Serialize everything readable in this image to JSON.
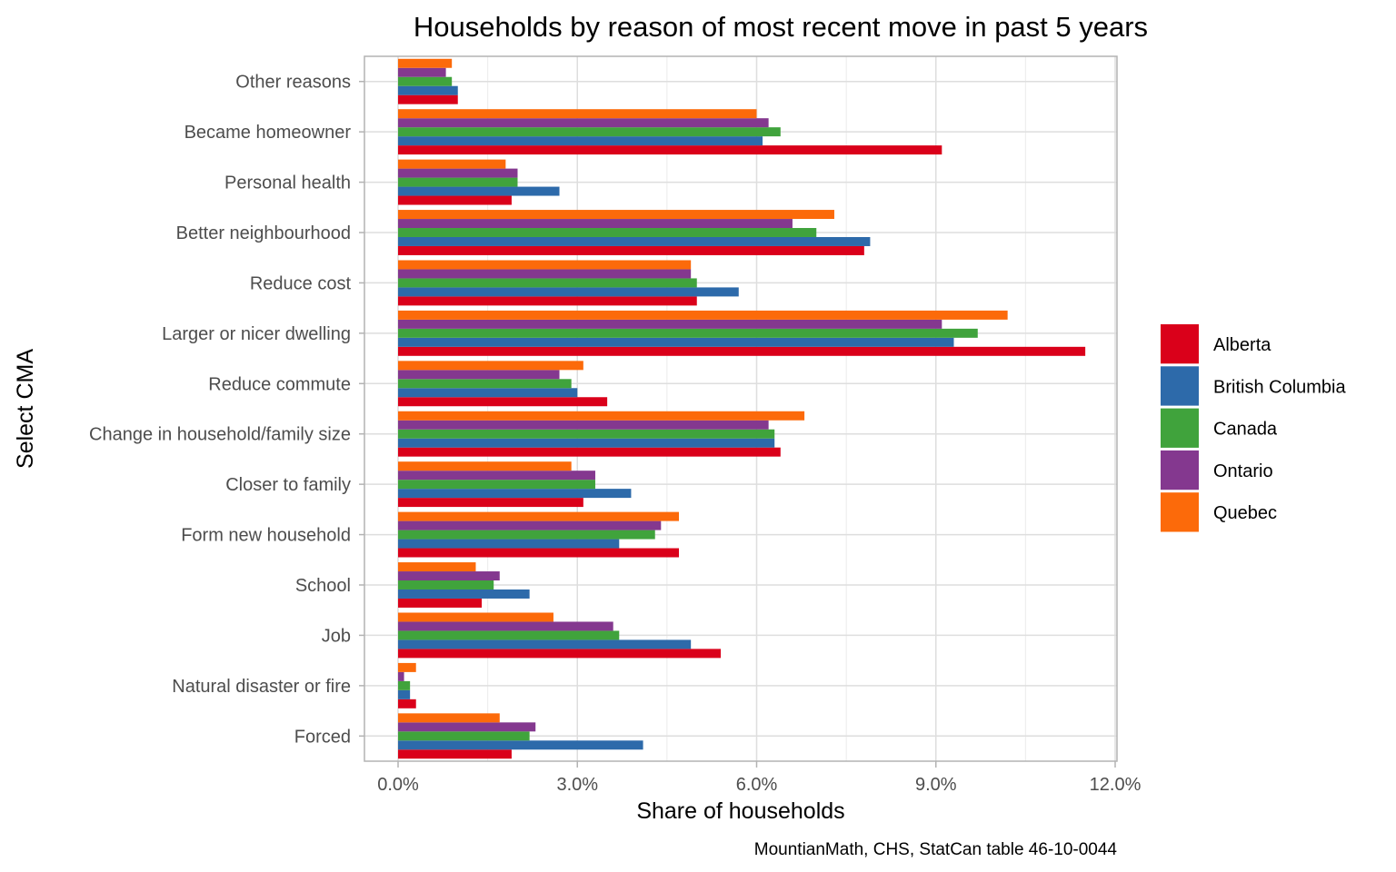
{
  "chart_data": {
    "type": "bar",
    "orientation": "horizontal",
    "title": "Households by reason of most recent move in past 5 years",
    "xlabel": "Share of households",
    "ylabel": "Select CMA",
    "caption": "MountianMath, CHS, StatCan table 46-10-0044",
    "xlim": [
      0,
      12
    ],
    "x_ticks": [
      0,
      3,
      6,
      9,
      12
    ],
    "x_tick_labels": [
      "0.0%",
      "3.0%",
      "6.0%",
      "9.0%",
      "12.0%"
    ],
    "grid": true,
    "legend_position": "right",
    "categories": [
      "Other reasons",
      "Became homeowner",
      "Personal health",
      "Better neighbourhood",
      "Reduce cost",
      "Larger or nicer dwelling",
      "Reduce commute",
      "Change in household/family size",
      "Closer to family",
      "Form new household",
      "School",
      "Job",
      "Natural disaster or fire",
      "Forced"
    ],
    "series": [
      {
        "name": "Alberta",
        "color": "#DA001A",
        "values": [
          1.0,
          9.1,
          1.9,
          7.8,
          5.0,
          11.5,
          3.5,
          6.4,
          3.1,
          4.7,
          1.4,
          5.4,
          0.3,
          1.9
        ]
      },
      {
        "name": "British Columbia",
        "color": "#2D6AAA",
        "values": [
          1.0,
          6.1,
          2.7,
          7.9,
          5.7,
          9.3,
          3.0,
          6.3,
          3.9,
          3.7,
          2.2,
          4.9,
          0.2,
          4.1
        ]
      },
      {
        "name": "Canada",
        "color": "#40A33C",
        "values": [
          0.9,
          6.4,
          2.0,
          7.0,
          5.0,
          9.7,
          2.9,
          6.3,
          3.3,
          4.3,
          1.6,
          3.7,
          0.2,
          2.2
        ]
      },
      {
        "name": "Ontario",
        "color": "#84388F",
        "values": [
          0.8,
          6.2,
          2.0,
          6.6,
          4.9,
          9.1,
          2.7,
          6.2,
          3.3,
          4.4,
          1.7,
          3.6,
          0.1,
          2.3
        ]
      },
      {
        "name": "Quebec",
        "color": "#FC6A0A",
        "values": [
          0.9,
          6.0,
          1.8,
          7.3,
          4.9,
          10.2,
          3.1,
          6.8,
          2.9,
          4.7,
          1.3,
          2.6,
          0.3,
          1.7
        ]
      }
    ]
  }
}
